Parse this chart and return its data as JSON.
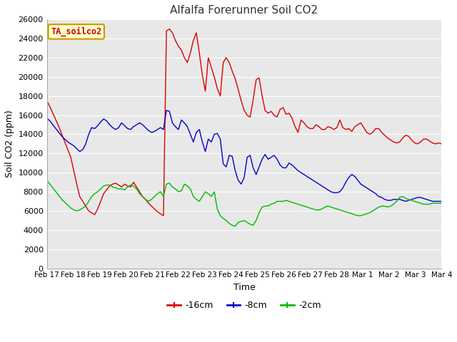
{
  "title": "Alfalfa Forerunner Soil CO2",
  "ylabel": "Soil CO2 (ppm)",
  "xlabel": "Time",
  "legend_label": "TA_soilco2",
  "ylim": [
    0,
    26000
  ],
  "yticks": [
    0,
    2000,
    4000,
    6000,
    8000,
    10000,
    12000,
    14000,
    16000,
    18000,
    20000,
    22000,
    24000,
    26000
  ],
  "xtick_labels": [
    "Feb 17",
    "Feb 18",
    "Feb 19",
    "Feb 20",
    "Feb 21",
    "Feb 22",
    "Feb 23",
    "Feb 24",
    "Feb 25",
    "Feb 26",
    "Feb 27",
    "Feb 28",
    "Mar 1",
    "Mar 2",
    "Mar 3",
    "Mar 4"
  ],
  "line_colors": [
    "#dd0000",
    "#0000cc",
    "#00bb00"
  ],
  "line_labels": [
    "-16cm",
    "-8cm",
    "-2cm"
  ],
  "fig_bg_color": "#ffffff",
  "plot_bg_color": "#e8e8e8",
  "grid_color": "#ffffff",
  "title_color": "#333333",
  "legend_box_color": "#ffffcc",
  "legend_box_edge": "#cc9900",
  "legend_label_color": "#cc0000",
  "red_data": [
    17500,
    16900,
    16200,
    15500,
    14800,
    14000,
    13200,
    12400,
    11600,
    10200,
    8800,
    7500,
    7000,
    6500,
    6000,
    5800,
    5600,
    6200,
    7000,
    7800,
    8200,
    8600,
    8800,
    8900,
    8700,
    8500,
    8800,
    8600,
    8500,
    9000,
    8500,
    8000,
    7500,
    7200,
    6800,
    6500,
    6200,
    5900,
    5700,
    5500,
    24800,
    25000,
    24600,
    23800,
    23200,
    22800,
    22000,
    21500,
    22500,
    23800,
    24600,
    22500,
    20200,
    18500,
    22000,
    21000,
    20000,
    18800,
    18000,
    21500,
    22000,
    21500,
    20600,
    19800,
    18700,
    17500,
    16500,
    16000,
    15800,
    17600,
    19700,
    19900,
    18000,
    16500,
    16200,
    16400,
    16000,
    15800,
    16600,
    16800,
    16100,
    16200,
    15700,
    14800,
    14200,
    15500,
    15200,
    14800,
    14600,
    14600,
    15000,
    14800,
    14500,
    14500,
    14800,
    14700,
    14500,
    14700,
    15500,
    14700,
    14500,
    14600,
    14300,
    14800,
    15000,
    15200,
    14700,
    14200,
    14000,
    14200,
    14600,
    14600,
    14200,
    13900,
    13600,
    13400,
    13200,
    13100,
    13200,
    13600,
    13900,
    13800,
    13400,
    13100,
    13000,
    13200,
    13500,
    13500,
    13300,
    13100,
    13000,
    13100,
    13000
  ],
  "blue_data": [
    15700,
    15400,
    15000,
    14600,
    14200,
    13800,
    13500,
    13200,
    13000,
    12800,
    12500,
    12200,
    12400,
    13000,
    14000,
    14700,
    14600,
    14900,
    15300,
    15600,
    15400,
    15000,
    14700,
    14500,
    14700,
    15200,
    14900,
    14600,
    14500,
    14800,
    15000,
    15200,
    15000,
    14700,
    14400,
    14200,
    14300,
    14500,
    14700,
    14500,
    16500,
    16400,
    15200,
    14800,
    14500,
    15500,
    15200,
    14800,
    14000,
    13200,
    14200,
    14500,
    13200,
    12200,
    13500,
    13200,
    14000,
    14100,
    13500,
    10900,
    10600,
    11800,
    11700,
    10200,
    9200,
    8800,
    9500,
    11600,
    11800,
    10500,
    9800,
    10600,
    11400,
    11900,
    11400,
    11600,
    11800,
    11400,
    10800,
    10500,
    10500,
    11000,
    10800,
    10500,
    10200,
    10000,
    9800,
    9600,
    9400,
    9200,
    9000,
    8800,
    8600,
    8400,
    8200,
    8000,
    7900,
    7900,
    8000,
    8400,
    9000,
    9500,
    9800,
    9600,
    9200,
    8800,
    8600,
    8400,
    8200,
    8000,
    7800,
    7500,
    7400,
    7200,
    7100,
    7100,
    7200,
    7200,
    7200,
    7100,
    7000,
    7100,
    7200,
    7300,
    7400,
    7400,
    7300,
    7200,
    7100,
    7000,
    7000,
    7000,
    7000
  ],
  "green_data": [
    9200,
    8800,
    8400,
    8000,
    7600,
    7200,
    6900,
    6600,
    6300,
    6100,
    6000,
    6100,
    6300,
    6500,
    7000,
    7500,
    7800,
    8000,
    8300,
    8600,
    8700,
    8700,
    8500,
    8400,
    8300,
    8300,
    8200,
    8500,
    8700,
    8600,
    8300,
    7800,
    7500,
    7200,
    7000,
    7200,
    7500,
    7800,
    8000,
    7500,
    8800,
    8900,
    8500,
    8300,
    8000,
    8100,
    8800,
    8600,
    8300,
    7500,
    7200,
    7000,
    7500,
    8000,
    7800,
    7500,
    8000,
    6200,
    5500,
    5200,
    5000,
    4700,
    4500,
    4400,
    4800,
    4900,
    5000,
    4800,
    4600,
    4500,
    5000,
    5800,
    6400,
    6500,
    6500,
    6700,
    6800,
    7000,
    7000,
    7000,
    7100,
    7000,
    6900,
    6800,
    6700,
    6600,
    6500,
    6400,
    6300,
    6200,
    6100,
    6100,
    6200,
    6400,
    6500,
    6400,
    6300,
    6200,
    6100,
    6000,
    5900,
    5800,
    5700,
    5600,
    5500,
    5500,
    5600,
    5700,
    5800,
    6000,
    6200,
    6400,
    6500,
    6500,
    6400,
    6500,
    6700,
    7000,
    7400,
    7500,
    7300,
    7200,
    7100,
    7000,
    6900,
    6800,
    6700,
    6700,
    6700,
    6800,
    6800,
    6800,
    6800
  ]
}
